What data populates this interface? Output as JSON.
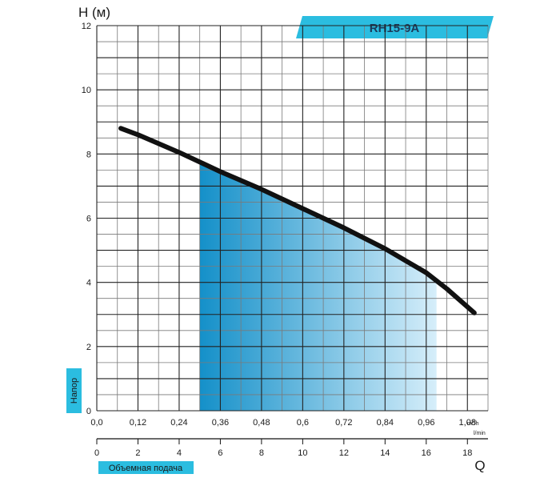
{
  "colors": {
    "accent": "#2bbde0",
    "curve": "#111111",
    "grid_major": "#222222",
    "grid_minor": "#7a7a7a",
    "fill_dark": "#1490c9",
    "fill_light": "#d6eefa"
  },
  "model_label": "RH15-9A",
  "y_axis_title": "H (м)",
  "y_side_label": "Напор",
  "x_bottom_title": "Q",
  "x_bottom_label": "Объемная подача",
  "x_top_unit_base": "m",
  "x_top_unit_exp": "3",
  "x_top_unit_tail": "/h",
  "x_bottom_unit": "l/min",
  "chart_data": {
    "type": "line",
    "title": "RH15-9A",
    "xlabel": "Q",
    "ylabel": "H (м)",
    "ylim": [
      0,
      12
    ],
    "xlim_m3h": [
      0,
      1.14
    ],
    "xlim_lmin": [
      0,
      19
    ],
    "grid": true,
    "y_ticks": [
      "0",
      "2",
      "4",
      "6",
      "8",
      "10",
      "12"
    ],
    "x_ticks_m3h": [
      "0,0",
      "0,12",
      "0,24",
      "0,36",
      "0,48",
      "0,6",
      "0,72",
      "0,84",
      "0,96",
      "1,08"
    ],
    "x_ticks_lmin": [
      "0",
      "2",
      "4",
      "6",
      "8",
      "10",
      "12",
      "14",
      "16",
      "18"
    ],
    "series": [
      {
        "x_m3h": [
          0.07,
          0.12,
          0.24,
          0.36,
          0.48,
          0.6,
          0.72,
          0.84,
          0.96,
          1.02,
          1.1
        ],
        "y": [
          8.8,
          8.6,
          8.05,
          7.45,
          6.9,
          6.3,
          5.7,
          5.05,
          4.3,
          3.8,
          3.05
        ]
      }
    ],
    "working_range_m3h": [
      0.3,
      0.99
    ]
  }
}
